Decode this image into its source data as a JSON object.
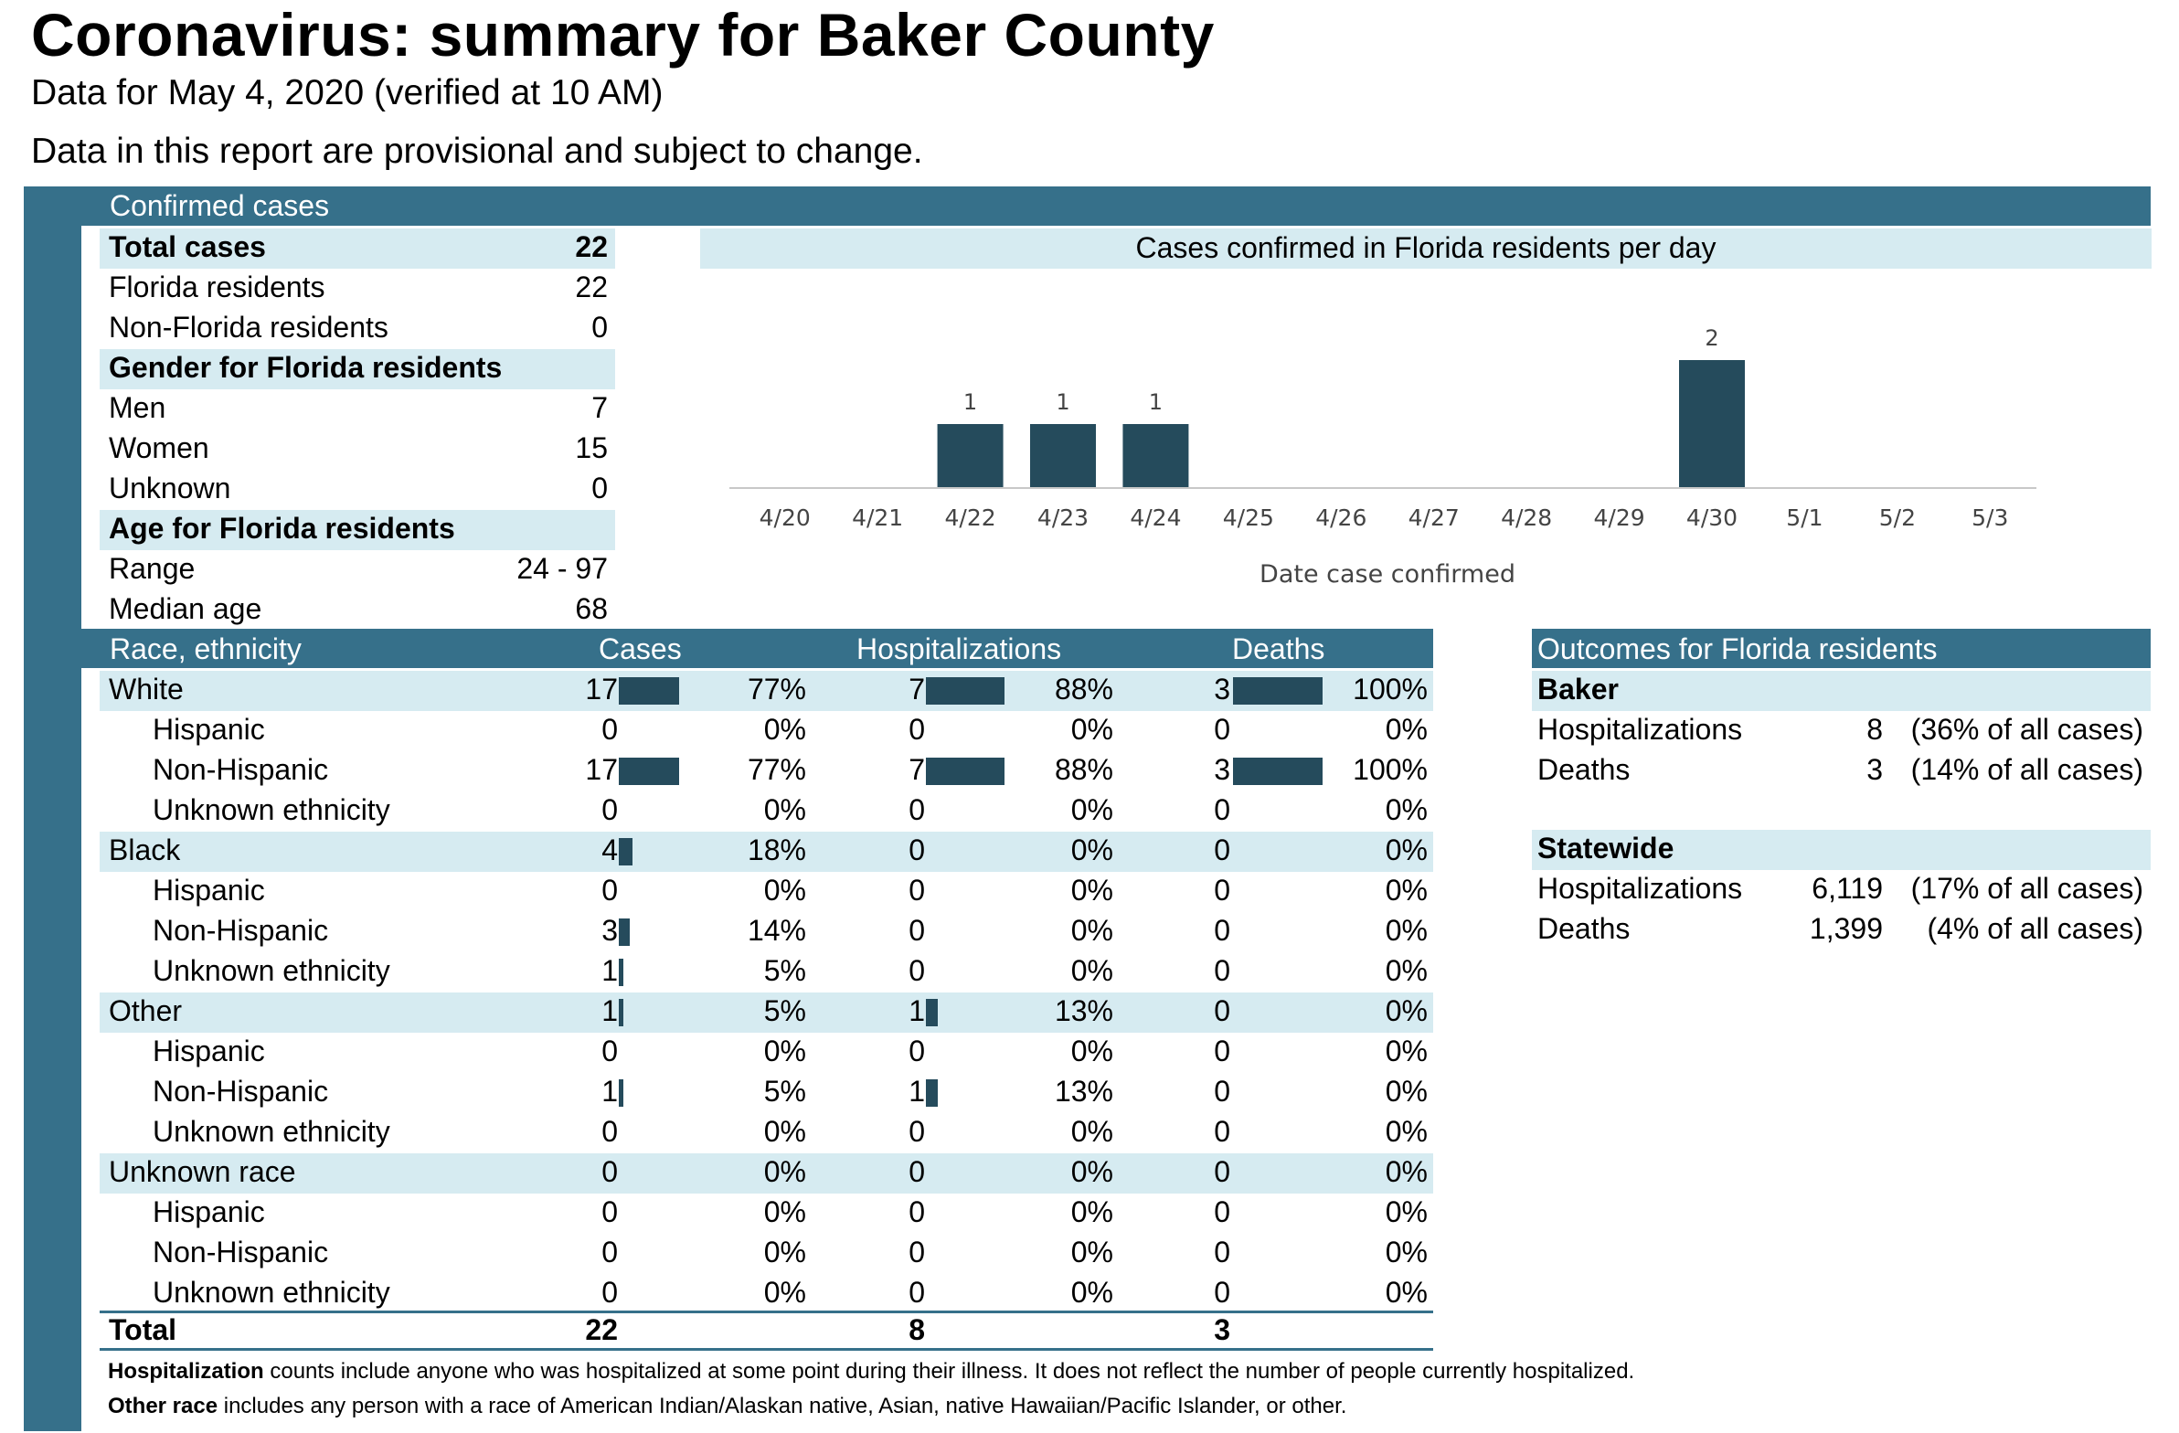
{
  "header": {
    "title": "Coronavirus: summary for Baker County",
    "subtitle": "Data for May 4, 2020 (verified at 10 AM)",
    "note": "Data in this report are provisional and subject to change."
  },
  "confirmed": {
    "heading": "Confirmed cases",
    "total_label": "Total cases",
    "total_value": "22",
    "fl_label": "Florida residents",
    "fl_value": "22",
    "nonfl_label": "Non-Florida residents",
    "nonfl_value": "0",
    "gender_heading": "Gender for Florida residents",
    "men_label": "Men",
    "men_value": "7",
    "women_label": "Women",
    "women_value": "15",
    "unknown_label": "Unknown",
    "unknown_value": "0",
    "age_heading": "Age for Florida residents",
    "range_label": "Range",
    "range_value": "24 - 97",
    "median_label": "Median age",
    "median_value": "68"
  },
  "chart_data": {
    "type": "bar",
    "title": "Cases confirmed in Florida residents per day",
    "xlabel": "Date case confirmed",
    "ylabel": "",
    "categories": [
      "4/20",
      "4/21",
      "4/22",
      "4/23",
      "4/24",
      "4/25",
      "4/26",
      "4/27",
      "4/28",
      "4/29",
      "4/30",
      "5/1",
      "5/2",
      "5/3"
    ],
    "values": [
      0,
      0,
      1,
      1,
      1,
      0,
      0,
      0,
      0,
      0,
      2,
      0,
      0,
      0
    ],
    "data_labels_shown_for_nonzero": true,
    "ylim": [
      0,
      2
    ],
    "grid": false,
    "bar_color": "#254b5c"
  },
  "race": {
    "headers": {
      "race": "Race, ethnicity",
      "cases": "Cases",
      "hosp": "Hospitalizations",
      "deaths": "Deaths"
    },
    "rows": [
      {
        "label": "White",
        "group": true,
        "cases": "17",
        "cases_pct": "77%",
        "cases_frac": 0.77,
        "hosp": "7",
        "hosp_pct": "88%",
        "hosp_frac": 0.88,
        "deaths": "3",
        "deaths_pct": "100%",
        "deaths_frac": 1.0
      },
      {
        "label": "Hispanic",
        "group": false,
        "cases": "0",
        "cases_pct": "0%",
        "cases_frac": 0,
        "hosp": "0",
        "hosp_pct": "0%",
        "hosp_frac": 0,
        "deaths": "0",
        "deaths_pct": "0%",
        "deaths_frac": 0
      },
      {
        "label": "Non-Hispanic",
        "group": false,
        "cases": "17",
        "cases_pct": "77%",
        "cases_frac": 0.77,
        "hosp": "7",
        "hosp_pct": "88%",
        "hosp_frac": 0.88,
        "deaths": "3",
        "deaths_pct": "100%",
        "deaths_frac": 1.0
      },
      {
        "label": "Unknown ethnicity",
        "group": false,
        "cases": "0",
        "cases_pct": "0%",
        "cases_frac": 0,
        "hosp": "0",
        "hosp_pct": "0%",
        "hosp_frac": 0,
        "deaths": "0",
        "deaths_pct": "0%",
        "deaths_frac": 0
      },
      {
        "label": "Black",
        "group": true,
        "cases": "4",
        "cases_pct": "18%",
        "cases_frac": 0.18,
        "hosp": "0",
        "hosp_pct": "0%",
        "hosp_frac": 0,
        "deaths": "0",
        "deaths_pct": "0%",
        "deaths_frac": 0
      },
      {
        "label": "Hispanic",
        "group": false,
        "cases": "0",
        "cases_pct": "0%",
        "cases_frac": 0,
        "hosp": "0",
        "hosp_pct": "0%",
        "hosp_frac": 0,
        "deaths": "0",
        "deaths_pct": "0%",
        "deaths_frac": 0
      },
      {
        "label": "Non-Hispanic",
        "group": false,
        "cases": "3",
        "cases_pct": "14%",
        "cases_frac": 0.14,
        "hosp": "0",
        "hosp_pct": "0%",
        "hosp_frac": 0,
        "deaths": "0",
        "deaths_pct": "0%",
        "deaths_frac": 0
      },
      {
        "label": "Unknown ethnicity",
        "group": false,
        "cases": "1",
        "cases_pct": "5%",
        "cases_frac": 0.05,
        "hosp": "0",
        "hosp_pct": "0%",
        "hosp_frac": 0,
        "deaths": "0",
        "deaths_pct": "0%",
        "deaths_frac": 0
      },
      {
        "label": "Other",
        "group": true,
        "cases": "1",
        "cases_pct": "5%",
        "cases_frac": 0.05,
        "hosp": "1",
        "hosp_pct": "13%",
        "hosp_frac": 0.13,
        "deaths": "0",
        "deaths_pct": "0%",
        "deaths_frac": 0
      },
      {
        "label": "Hispanic",
        "group": false,
        "cases": "0",
        "cases_pct": "0%",
        "cases_frac": 0,
        "hosp": "0",
        "hosp_pct": "0%",
        "hosp_frac": 0,
        "deaths": "0",
        "deaths_pct": "0%",
        "deaths_frac": 0
      },
      {
        "label": "Non-Hispanic",
        "group": false,
        "cases": "1",
        "cases_pct": "5%",
        "cases_frac": 0.05,
        "hosp": "1",
        "hosp_pct": "13%",
        "hosp_frac": 0.13,
        "deaths": "0",
        "deaths_pct": "0%",
        "deaths_frac": 0
      },
      {
        "label": "Unknown ethnicity",
        "group": false,
        "cases": "0",
        "cases_pct": "0%",
        "cases_frac": 0,
        "hosp": "0",
        "hosp_pct": "0%",
        "hosp_frac": 0,
        "deaths": "0",
        "deaths_pct": "0%",
        "deaths_frac": 0
      },
      {
        "label": "Unknown race",
        "group": true,
        "cases": "0",
        "cases_pct": "0%",
        "cases_frac": 0,
        "hosp": "0",
        "hosp_pct": "0%",
        "hosp_frac": 0,
        "deaths": "0",
        "deaths_pct": "0%",
        "deaths_frac": 0
      },
      {
        "label": "Hispanic",
        "group": false,
        "cases": "0",
        "cases_pct": "0%",
        "cases_frac": 0,
        "hosp": "0",
        "hosp_pct": "0%",
        "hosp_frac": 0,
        "deaths": "0",
        "deaths_pct": "0%",
        "deaths_frac": 0
      },
      {
        "label": "Non-Hispanic",
        "group": false,
        "cases": "0",
        "cases_pct": "0%",
        "cases_frac": 0,
        "hosp": "0",
        "hosp_pct": "0%",
        "hosp_frac": 0,
        "deaths": "0",
        "deaths_pct": "0%",
        "deaths_frac": 0
      },
      {
        "label": "Unknown ethnicity",
        "group": false,
        "cases": "0",
        "cases_pct": "0%",
        "cases_frac": 0,
        "hosp": "0",
        "hosp_pct": "0%",
        "hosp_frac": 0,
        "deaths": "0",
        "deaths_pct": "0%",
        "deaths_frac": 0
      }
    ],
    "total": {
      "label": "Total",
      "cases": "22",
      "hosp": "8",
      "deaths": "3"
    }
  },
  "outcomes": {
    "heading": "Outcomes for Florida residents",
    "baker": {
      "heading": "Baker",
      "hosp_label": "Hospitalizations",
      "hosp_value": "8",
      "hosp_note": "(36% of all cases)",
      "deaths_label": "Deaths",
      "deaths_value": "3",
      "deaths_note": "(14% of all cases)"
    },
    "statewide": {
      "heading": "Statewide",
      "hosp_label": "Hospitalizations",
      "hosp_value": "6,119",
      "hosp_note": "(17% of all cases)",
      "deaths_label": "Deaths",
      "deaths_value": "1,399",
      "deaths_note": "(4% of all cases)"
    }
  },
  "footnotes": {
    "hosp_term": "Hospitalization",
    "hosp_text": " counts include anyone who was hospitalized at some point during their illness. It does not reflect the number of people currently hospitalized.",
    "other_term": "Other race",
    "other_text": " includes any person with a race of American Indian/Alaskan native, Asian, native Hawaiian/Pacific Islander, or other."
  },
  "colors": {
    "dark_teal": "#36708a",
    "light_band": "#d6ebf1",
    "bar": "#254b5c"
  }
}
